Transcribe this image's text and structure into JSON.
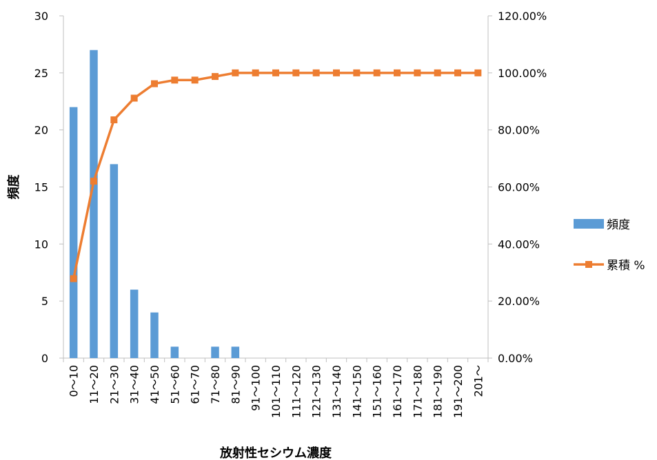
{
  "chart_data": {
    "type": "bar",
    "categories": [
      "0～10",
      "11～20",
      "21～30",
      "31～40",
      "41～50",
      "51～60",
      "61～70",
      "71～80",
      "81～90",
      "91～100",
      "101～110",
      "111～120",
      "121～130",
      "131～140",
      "141～150",
      "151～160",
      "161～170",
      "171～180",
      "181～190",
      "191～200",
      "201～"
    ],
    "series": [
      {
        "name": "頻度",
        "type": "bar",
        "axis": "left",
        "color": "#5B9BD5",
        "values": [
          22,
          27,
          17,
          6,
          4,
          1,
          0,
          1,
          1,
          0,
          0,
          0,
          0,
          0,
          0,
          0,
          0,
          0,
          0,
          0,
          0
        ]
      },
      {
        "name": "累積 %",
        "type": "line",
        "axis": "right",
        "color": "#ED7D31",
        "values": [
          27.85,
          62.03,
          83.54,
          91.14,
          96.2,
          97.47,
          97.47,
          98.73,
          100,
          100,
          100,
          100,
          100,
          100,
          100,
          100,
          100,
          100,
          100,
          100,
          100
        ]
      }
    ],
    "xlabel": "放射性セシウム濃度",
    "ylabel": "頻度",
    "ylim": [
      0,
      30
    ],
    "y2lim": [
      0,
      120
    ],
    "y_ticks": [
      "0",
      "5",
      "10",
      "15",
      "20",
      "25",
      "30"
    ],
    "y2_ticks": [
      "0.00%",
      "20.00%",
      "40.00%",
      "60.00%",
      "80.00%",
      "100.00%",
      "120.00%"
    ],
    "legend_position": "right",
    "grid": false
  }
}
